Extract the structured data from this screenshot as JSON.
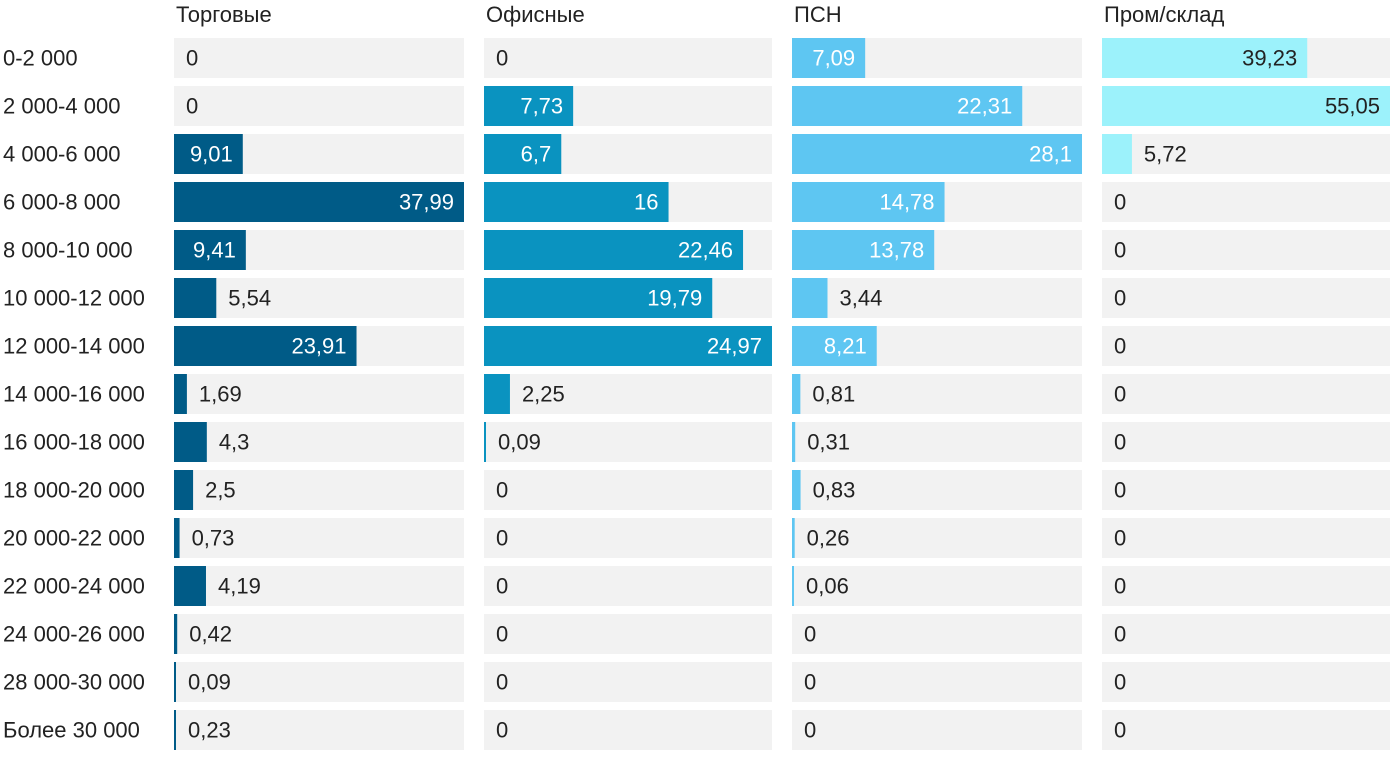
{
  "chart_data": {
    "type": "bar",
    "orientation": "horizontal",
    "layout": "small-multiples",
    "categories": [
      "0-2 000",
      "2 000-4 000",
      "4 000-6 000",
      "6 000-8 000",
      "8 000-10 000",
      "10 000-12 000",
      "12 000-14 000",
      "14 000-16 000",
      "16 000-18 000",
      "18 000-20 000",
      "20 000-22 000",
      "22 000-24 000",
      "24 000-26 000",
      "28 000-30 000",
      "Более 30 000"
    ],
    "series": [
      {
        "name": "Торговые",
        "color": "#005b87",
        "values": [
          0,
          0,
          9.01,
          37.99,
          9.41,
          5.54,
          23.91,
          1.69,
          4.3,
          2.5,
          0.73,
          4.19,
          0.42,
          0.09,
          0.23
        ],
        "labels": [
          "0",
          "0",
          "9,01",
          "37,99",
          "9,41",
          "5,54",
          "23,91",
          "1,69",
          "4,3",
          "2,5",
          "0,73",
          "4,19",
          "0,42",
          "0,09",
          "0,23"
        ],
        "max": 37.99
      },
      {
        "name": "Офисные",
        "color": "#0a93c0",
        "values": [
          0,
          7.73,
          6.7,
          16,
          22.46,
          19.79,
          24.97,
          2.25,
          0.09,
          0,
          0,
          0,
          0,
          0,
          0
        ],
        "labels": [
          "0",
          "7,73",
          "6,7",
          "16",
          "22,46",
          "19,79",
          "24,97",
          "2,25",
          "0,09",
          "0",
          "0",
          "0",
          "0",
          "0",
          "0"
        ],
        "max": 24.97
      },
      {
        "name": "ПСН",
        "color": "#5ec6f2",
        "values": [
          7.09,
          22.31,
          28.1,
          14.78,
          13.78,
          3.44,
          8.21,
          0.81,
          0.31,
          0.83,
          0.26,
          0.06,
          0,
          0,
          0
        ],
        "labels": [
          "7,09",
          "22,31",
          "28,1",
          "14,78",
          "13,78",
          "3,44",
          "8,21",
          "0,81",
          "0,31",
          "0,83",
          "0,26",
          "0,06",
          "0",
          "0",
          "0"
        ],
        "max": 28.1
      },
      {
        "name": "Пром/склад",
        "color": "#9cf2fb",
        "values": [
          39.23,
          55.05,
          5.72,
          0,
          0,
          0,
          0,
          0,
          0,
          0,
          0,
          0,
          0,
          0,
          0
        ],
        "labels": [
          "39,23",
          "55,05",
          "5,72",
          "0",
          "0",
          "0",
          "0",
          "0",
          "0",
          "0",
          "0",
          "0",
          "0",
          "0",
          "0"
        ],
        "max": 55.05
      }
    ],
    "track_color": "#f2f2f2",
    "label_dark_color": "#222222",
    "label_light_color": "#ffffff",
    "grid": false,
    "legend": "none"
  }
}
